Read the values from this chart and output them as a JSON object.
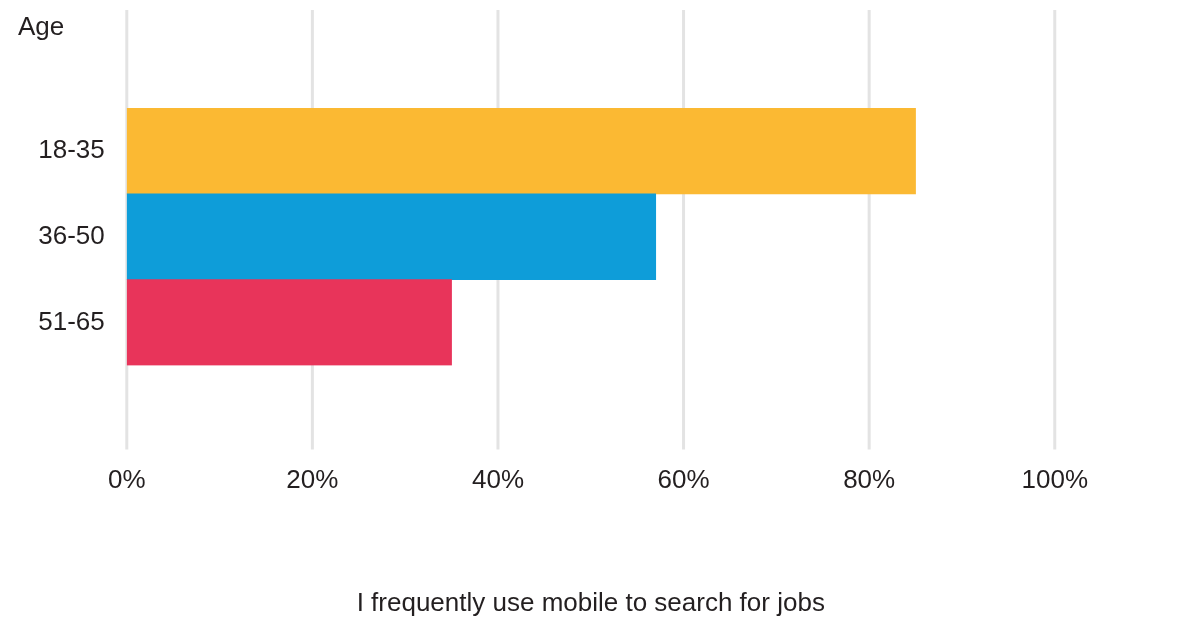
{
  "chart_data": {
    "type": "bar",
    "orientation": "horizontal",
    "ylabel": "Age",
    "xlabel": "I frequently use mobile to search for jobs",
    "categories": [
      "18-35",
      "36-50",
      "51-65"
    ],
    "values": [
      85,
      57,
      35
    ],
    "colors": [
      "#fbb933",
      "#0e9dd9",
      "#e8345a"
    ],
    "xlim": [
      0,
      100
    ],
    "xticks": [
      {
        "value": 0,
        "label": "0%"
      },
      {
        "value": 20,
        "label": "20%"
      },
      {
        "value": 40,
        "label": "40%"
      },
      {
        "value": 60,
        "label": "60%"
      },
      {
        "value": 80,
        "label": "80%"
      },
      {
        "value": 100,
        "label": "100%"
      }
    ],
    "grid": "x",
    "legend": false
  }
}
